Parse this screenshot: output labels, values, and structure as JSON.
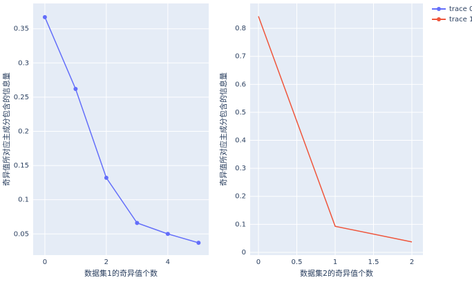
{
  "chart_data": [
    {
      "type": "line",
      "x": [
        0,
        1,
        2,
        3,
        4,
        5
      ],
      "xlim": [
        -0.38,
        5.33
      ],
      "xticks": [
        0,
        2,
        4
      ],
      "ylim": [
        0.019,
        0.387
      ],
      "yticks": [
        0.05,
        0.1,
        0.15,
        0.2,
        0.25,
        0.3,
        0.35
      ],
      "xlabel": "数据集1的奇异值个数",
      "ylabel": "奇异值所对应主成分包含的信息量",
      "grid": true,
      "markers": true,
      "series": [
        {
          "name": "trace 0",
          "color": "#636efa",
          "values": [
            0.367,
            0.262,
            0.132,
            0.066,
            0.05,
            0.037
          ]
        }
      ]
    },
    {
      "type": "line",
      "x": [
        0,
        1,
        2
      ],
      "xlim": [
        -0.108,
        2.144
      ],
      "xticks": [
        0,
        0.5,
        1,
        1.5,
        2
      ],
      "ylim": [
        -0.01,
        0.889
      ],
      "yticks": [
        0,
        0.1,
        0.2,
        0.3,
        0.4,
        0.5,
        0.6,
        0.7,
        0.8
      ],
      "xlabel": "数据集2的奇异值个数",
      "ylabel": "奇异值所对应主成分包含的信息量",
      "grid": true,
      "markers": false,
      "series": [
        {
          "name": "trace 1",
          "color": "#EF553B",
          "values": [
            0.843,
            0.093,
            0.037
          ]
        }
      ]
    }
  ]
}
